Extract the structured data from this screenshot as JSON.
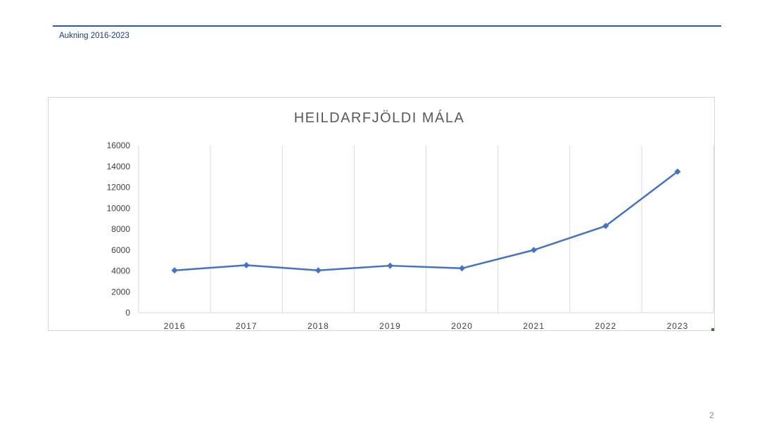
{
  "slide": {
    "subtitle": "Aukning 2016-2023",
    "page_number": "2",
    "accent_color": "#2a5c9e"
  },
  "chart_data": {
    "type": "line",
    "title": "HEILDARFJÖLDI MÁLA",
    "xlabel": "",
    "ylabel": "",
    "categories": [
      "2016",
      "2017",
      "2018",
      "2019",
      "2020",
      "2021",
      "2022",
      "2023"
    ],
    "series": [
      {
        "values": [
          4050,
          4550,
          4050,
          4500,
          4250,
          6000,
          8300,
          13500
        ],
        "color": "#4472c4",
        "marker": "diamond"
      }
    ],
    "ylim": [
      0,
      16000
    ],
    "yticks": [
      0,
      2000,
      4000,
      6000,
      8000,
      10000,
      12000,
      14000,
      16000
    ],
    "grid": "vertical"
  }
}
